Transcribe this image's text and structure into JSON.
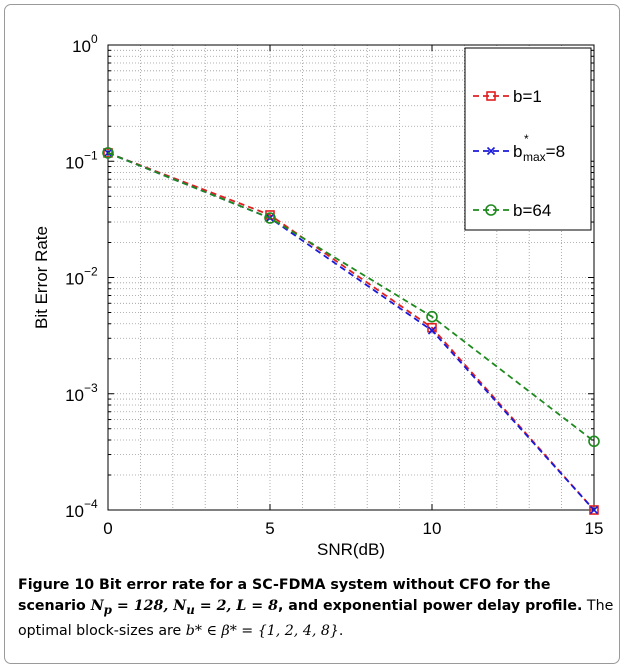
{
  "chart_data": {
    "type": "line",
    "xlabel": "SNR(dB)",
    "ylabel": "Bit Error Rate",
    "xlim": [
      0,
      15
    ],
    "ylim": [
      0.0001,
      1
    ],
    "yscale": "log",
    "grid": true,
    "legend_position": "top-right",
    "x_ticks": [
      "0",
      "5",
      "10",
      "15"
    ],
    "y_ticks": [
      {
        "base": "10",
        "exp": "0"
      },
      {
        "base": "10",
        "exp": "−1"
      },
      {
        "base": "10",
        "exp": "−2"
      },
      {
        "base": "10",
        "exp": "−3"
      },
      {
        "base": "10",
        "exp": "−4"
      }
    ],
    "series": [
      {
        "name": "b=1",
        "legend_main": "b=1",
        "legend_sup": "",
        "legend_sub": "",
        "legend_tail": "",
        "color": "#e02020",
        "marker": "square",
        "x": [
          0,
          5,
          10,
          15
        ],
        "y": [
          0.118,
          0.0345,
          0.0037,
          0.0001
        ]
      },
      {
        "name": "b*max=8",
        "legend_main": "b",
        "legend_sup": "*",
        "legend_sub": "max",
        "legend_tail": "=8",
        "color": "#1a1ad8",
        "marker": "x",
        "x": [
          0,
          5,
          10,
          15
        ],
        "y": [
          0.118,
          0.0325,
          0.0035,
          0.0001
        ]
      },
      {
        "name": "b=64",
        "legend_main": "b=64",
        "legend_sup": "",
        "legend_sub": "",
        "legend_tail": "",
        "color": "#1e8a1e",
        "marker": "circle",
        "x": [
          0,
          5,
          10,
          15
        ],
        "y": [
          0.118,
          0.0325,
          0.0046,
          0.00039
        ]
      }
    ]
  },
  "caption": {
    "bold_part1": "Figure 10 Bit error rate for a SC-FDMA system without CFO for the scenario ",
    "np": "N",
    "np_sub": "p",
    "np_val": " = 128, ",
    "nu": "N",
    "nu_sub": "u",
    "nu_val": " = 2, ",
    "l": "L",
    "l_val": " = 8",
    "bold_part2": ", and exponential power delay profile.",
    "normal_part": " The optimal block-sizes are ",
    "set_expr": "b* ∈ β* = {1, 2, 4, 8}",
    "end": "."
  }
}
